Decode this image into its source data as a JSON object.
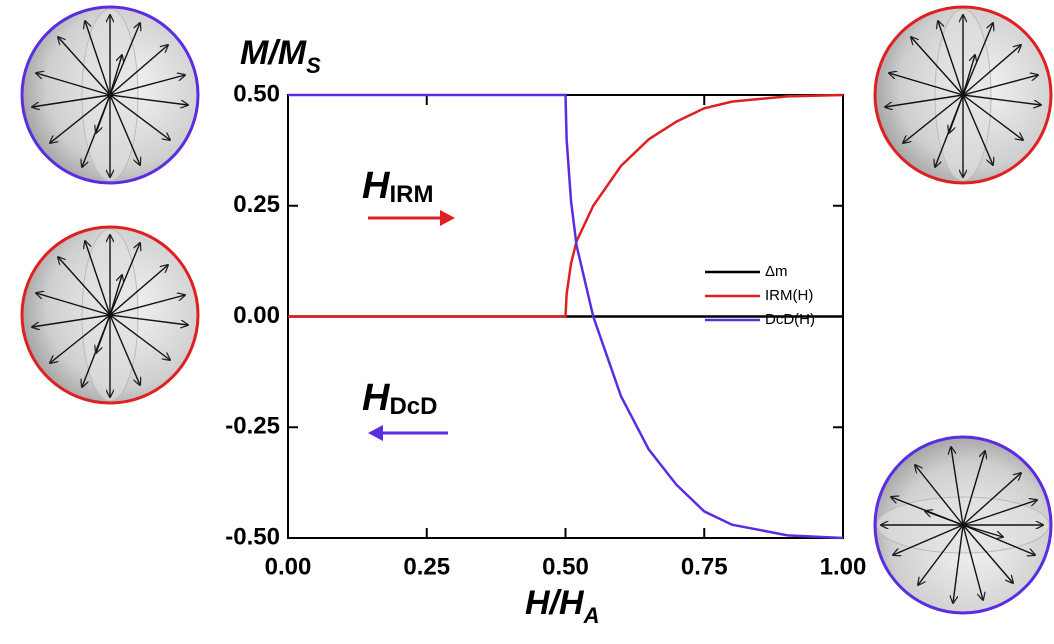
{
  "chart_data": {
    "type": "line",
    "y_label": {
      "main": "M/M",
      "sub": "S"
    },
    "x_label": {
      "main": "H/H",
      "sub": "A"
    },
    "annotations": [
      {
        "main": "H",
        "sub": "IRM"
      },
      {
        "main": "H",
        "sub": "DcD"
      }
    ],
    "x": [
      0,
      0.5,
      0.502,
      0.51,
      0.52,
      0.55,
      0.6,
      0.65,
      0.7,
      0.75,
      0.8,
      0.9,
      1
    ],
    "series": [
      {
        "name": "Δm",
        "color": "#000000",
        "values": [
          0,
          0,
          0,
          0,
          0,
          0,
          0,
          0,
          0,
          0,
          0,
          0,
          0
        ]
      },
      {
        "name": "IRM(H)",
        "color": "#e02020",
        "values": [
          0,
          0,
          0.05,
          0.12,
          0.17,
          0.25,
          0.34,
          0.4,
          0.44,
          0.47,
          0.485,
          0.497,
          0.5
        ]
      },
      {
        "name": "DcD(H)",
        "color": "#5a2de0",
        "values": [
          0.5,
          0.5,
          0.4,
          0.26,
          0.16,
          0,
          -0.18,
          -0.3,
          -0.38,
          -0.44,
          -0.47,
          -0.494,
          -0.5
        ]
      }
    ],
    "xlim": [
      0,
      1
    ],
    "ylim": [
      -0.5,
      0.5
    ],
    "xticks": [
      {
        "value": 0,
        "label": "0.00"
      },
      {
        "value": 0.25,
        "label": "0.25"
      },
      {
        "value": 0.5,
        "label": "0.50"
      },
      {
        "value": 0.75,
        "label": "0.75"
      },
      {
        "value": 1,
        "label": "1.00"
      }
    ],
    "yticks": [
      {
        "value": -0.5,
        "label": "-0.50"
      },
      {
        "value": -0.25,
        "label": "-0.25"
      },
      {
        "value": 0,
        "label": "0.00"
      },
      {
        "value": 0.25,
        "label": "0.25"
      },
      {
        "value": 0.5,
        "label": "0.50"
      }
    ],
    "legend": "right"
  }
}
